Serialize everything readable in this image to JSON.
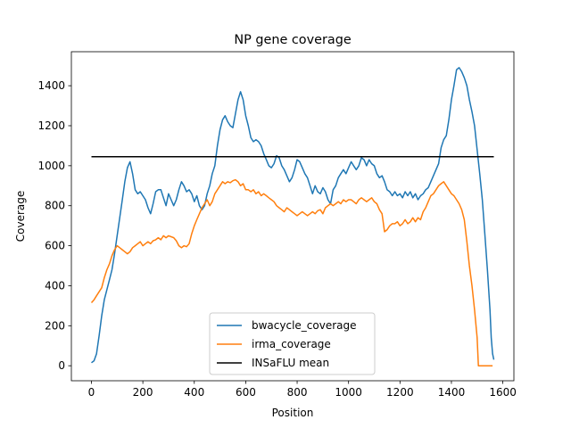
{
  "chart_data": {
    "type": "line",
    "title": "NP gene coverage",
    "xlabel": "Position",
    "ylabel": "Coverage",
    "xlim": [
      -78,
      1643
    ],
    "ylim": [
      -75,
      1570
    ],
    "xticks": [
      0,
      200,
      400,
      600,
      800,
      1000,
      1200,
      1400,
      1600
    ],
    "yticks": [
      0,
      200,
      400,
      600,
      800,
      1000,
      1200,
      1400
    ],
    "grid": false,
    "legend_position": "lower center",
    "series": [
      {
        "name": "bwacycle_coverage",
        "color": "#1f77b4",
        "points": [
          [
            0,
            15
          ],
          [
            10,
            25
          ],
          [
            20,
            60
          ],
          [
            30,
            150
          ],
          [
            40,
            250
          ],
          [
            50,
            330
          ],
          [
            60,
            380
          ],
          [
            70,
            430
          ],
          [
            80,
            480
          ],
          [
            90,
            560
          ],
          [
            100,
            650
          ],
          [
            110,
            740
          ],
          [
            120,
            830
          ],
          [
            130,
            920
          ],
          [
            140,
            990
          ],
          [
            150,
            1020
          ],
          [
            160,
            960
          ],
          [
            170,
            880
          ],
          [
            180,
            860
          ],
          [
            190,
            870
          ],
          [
            200,
            850
          ],
          [
            210,
            830
          ],
          [
            220,
            790
          ],
          [
            230,
            760
          ],
          [
            240,
            810
          ],
          [
            250,
            870
          ],
          [
            260,
            880
          ],
          [
            270,
            880
          ],
          [
            280,
            840
          ],
          [
            290,
            800
          ],
          [
            300,
            860
          ],
          [
            310,
            830
          ],
          [
            320,
            800
          ],
          [
            330,
            830
          ],
          [
            340,
            880
          ],
          [
            350,
            920
          ],
          [
            360,
            900
          ],
          [
            370,
            870
          ],
          [
            380,
            880
          ],
          [
            390,
            860
          ],
          [
            400,
            820
          ],
          [
            410,
            850
          ],
          [
            420,
            800
          ],
          [
            430,
            780
          ],
          [
            440,
            800
          ],
          [
            450,
            860
          ],
          [
            460,
            900
          ],
          [
            470,
            960
          ],
          [
            480,
            1000
          ],
          [
            490,
            1100
          ],
          [
            500,
            1180
          ],
          [
            510,
            1230
          ],
          [
            520,
            1250
          ],
          [
            530,
            1220
          ],
          [
            540,
            1200
          ],
          [
            550,
            1190
          ],
          [
            560,
            1260
          ],
          [
            570,
            1330
          ],
          [
            580,
            1370
          ],
          [
            590,
            1330
          ],
          [
            600,
            1250
          ],
          [
            610,
            1200
          ],
          [
            620,
            1140
          ],
          [
            630,
            1120
          ],
          [
            640,
            1130
          ],
          [
            650,
            1120
          ],
          [
            660,
            1100
          ],
          [
            670,
            1060
          ],
          [
            680,
            1030
          ],
          [
            690,
            1000
          ],
          [
            700,
            990
          ],
          [
            710,
            1010
          ],
          [
            720,
            1050
          ],
          [
            730,
            1040
          ],
          [
            740,
            1000
          ],
          [
            750,
            980
          ],
          [
            760,
            950
          ],
          [
            770,
            920
          ],
          [
            780,
            940
          ],
          [
            790,
            980
          ],
          [
            800,
            1030
          ],
          [
            810,
            1020
          ],
          [
            820,
            990
          ],
          [
            830,
            960
          ],
          [
            840,
            940
          ],
          [
            850,
            900
          ],
          [
            860,
            860
          ],
          [
            870,
            900
          ],
          [
            880,
            870
          ],
          [
            890,
            860
          ],
          [
            900,
            890
          ],
          [
            910,
            870
          ],
          [
            920,
            830
          ],
          [
            930,
            810
          ],
          [
            940,
            880
          ],
          [
            950,
            900
          ],
          [
            960,
            940
          ],
          [
            970,
            960
          ],
          [
            980,
            980
          ],
          [
            990,
            960
          ],
          [
            1000,
            990
          ],
          [
            1010,
            1020
          ],
          [
            1020,
            1000
          ],
          [
            1030,
            980
          ],
          [
            1040,
            1000
          ],
          [
            1050,
            1040
          ],
          [
            1060,
            1030
          ],
          [
            1070,
            1000
          ],
          [
            1080,
            1030
          ],
          [
            1090,
            1010
          ],
          [
            1100,
            1000
          ],
          [
            1110,
            960
          ],
          [
            1120,
            940
          ],
          [
            1130,
            950
          ],
          [
            1140,
            920
          ],
          [
            1150,
            880
          ],
          [
            1160,
            870
          ],
          [
            1170,
            850
          ],
          [
            1180,
            870
          ],
          [
            1190,
            850
          ],
          [
            1200,
            860
          ],
          [
            1210,
            840
          ],
          [
            1220,
            870
          ],
          [
            1230,
            850
          ],
          [
            1240,
            870
          ],
          [
            1250,
            840
          ],
          [
            1260,
            860
          ],
          [
            1270,
            830
          ],
          [
            1280,
            850
          ],
          [
            1290,
            860
          ],
          [
            1300,
            880
          ],
          [
            1310,
            890
          ],
          [
            1320,
            920
          ],
          [
            1330,
            950
          ],
          [
            1340,
            980
          ],
          [
            1350,
            1010
          ],
          [
            1360,
            1090
          ],
          [
            1370,
            1130
          ],
          [
            1380,
            1150
          ],
          [
            1390,
            1230
          ],
          [
            1400,
            1330
          ],
          [
            1410,
            1400
          ],
          [
            1420,
            1480
          ],
          [
            1430,
            1490
          ],
          [
            1440,
            1470
          ],
          [
            1450,
            1440
          ],
          [
            1460,
            1400
          ],
          [
            1470,
            1330
          ],
          [
            1480,
            1270
          ],
          [
            1490,
            1200
          ],
          [
            1500,
            1080
          ],
          [
            1510,
            960
          ],
          [
            1520,
            830
          ],
          [
            1530,
            660
          ],
          [
            1540,
            480
          ],
          [
            1550,
            280
          ],
          [
            1555,
            140
          ],
          [
            1560,
            60
          ],
          [
            1565,
            30
          ]
        ]
      },
      {
        "name": "irma_coverage",
        "color": "#ff7f0e",
        "points": [
          [
            0,
            315
          ],
          [
            10,
            330
          ],
          [
            20,
            350
          ],
          [
            30,
            370
          ],
          [
            40,
            390
          ],
          [
            50,
            440
          ],
          [
            60,
            480
          ],
          [
            70,
            510
          ],
          [
            80,
            550
          ],
          [
            90,
            580
          ],
          [
            100,
            600
          ],
          [
            110,
            590
          ],
          [
            120,
            580
          ],
          [
            130,
            570
          ],
          [
            140,
            560
          ],
          [
            150,
            570
          ],
          [
            160,
            590
          ],
          [
            170,
            600
          ],
          [
            180,
            610
          ],
          [
            190,
            620
          ],
          [
            200,
            600
          ],
          [
            210,
            610
          ],
          [
            220,
            620
          ],
          [
            230,
            610
          ],
          [
            240,
            625
          ],
          [
            250,
            630
          ],
          [
            260,
            640
          ],
          [
            270,
            630
          ],
          [
            280,
            650
          ],
          [
            290,
            640
          ],
          [
            300,
            650
          ],
          [
            310,
            645
          ],
          [
            320,
            640
          ],
          [
            330,
            625
          ],
          [
            340,
            600
          ],
          [
            350,
            590
          ],
          [
            360,
            600
          ],
          [
            370,
            595
          ],
          [
            380,
            610
          ],
          [
            390,
            660
          ],
          [
            400,
            700
          ],
          [
            410,
            730
          ],
          [
            420,
            760
          ],
          [
            430,
            790
          ],
          [
            440,
            810
          ],
          [
            450,
            830
          ],
          [
            460,
            800
          ],
          [
            470,
            820
          ],
          [
            480,
            860
          ],
          [
            490,
            880
          ],
          [
            500,
            900
          ],
          [
            510,
            920
          ],
          [
            520,
            910
          ],
          [
            530,
            920
          ],
          [
            540,
            915
          ],
          [
            550,
            925
          ],
          [
            560,
            930
          ],
          [
            570,
            920
          ],
          [
            580,
            900
          ],
          [
            590,
            910
          ],
          [
            600,
            880
          ],
          [
            610,
            880
          ],
          [
            620,
            870
          ],
          [
            630,
            880
          ],
          [
            640,
            860
          ],
          [
            650,
            870
          ],
          [
            660,
            850
          ],
          [
            670,
            860
          ],
          [
            680,
            850
          ],
          [
            690,
            840
          ],
          [
            700,
            830
          ],
          [
            710,
            820
          ],
          [
            720,
            800
          ],
          [
            730,
            790
          ],
          [
            740,
            780
          ],
          [
            750,
            770
          ],
          [
            760,
            790
          ],
          [
            770,
            780
          ],
          [
            780,
            770
          ],
          [
            790,
            760
          ],
          [
            800,
            750
          ],
          [
            810,
            760
          ],
          [
            820,
            770
          ],
          [
            830,
            760
          ],
          [
            840,
            750
          ],
          [
            850,
            760
          ],
          [
            860,
            770
          ],
          [
            870,
            760
          ],
          [
            880,
            775
          ],
          [
            890,
            780
          ],
          [
            900,
            760
          ],
          [
            910,
            790
          ],
          [
            920,
            800
          ],
          [
            930,
            810
          ],
          [
            940,
            800
          ],
          [
            950,
            810
          ],
          [
            960,
            820
          ],
          [
            970,
            810
          ],
          [
            980,
            830
          ],
          [
            990,
            820
          ],
          [
            1000,
            830
          ],
          [
            1010,
            830
          ],
          [
            1020,
            820
          ],
          [
            1030,
            810
          ],
          [
            1040,
            830
          ],
          [
            1050,
            840
          ],
          [
            1060,
            830
          ],
          [
            1070,
            820
          ],
          [
            1080,
            830
          ],
          [
            1090,
            840
          ],
          [
            1100,
            820
          ],
          [
            1110,
            810
          ],
          [
            1120,
            780
          ],
          [
            1130,
            760
          ],
          [
            1140,
            670
          ],
          [
            1150,
            680
          ],
          [
            1160,
            700
          ],
          [
            1170,
            710
          ],
          [
            1180,
            710
          ],
          [
            1190,
            720
          ],
          [
            1200,
            700
          ],
          [
            1210,
            710
          ],
          [
            1220,
            730
          ],
          [
            1230,
            710
          ],
          [
            1240,
            720
          ],
          [
            1250,
            740
          ],
          [
            1260,
            720
          ],
          [
            1270,
            740
          ],
          [
            1280,
            730
          ],
          [
            1290,
            770
          ],
          [
            1300,
            790
          ],
          [
            1310,
            820
          ],
          [
            1320,
            850
          ],
          [
            1330,
            860
          ],
          [
            1340,
            880
          ],
          [
            1350,
            900
          ],
          [
            1360,
            910
          ],
          [
            1370,
            920
          ],
          [
            1380,
            900
          ],
          [
            1390,
            880
          ],
          [
            1400,
            860
          ],
          [
            1410,
            850
          ],
          [
            1420,
            830
          ],
          [
            1430,
            810
          ],
          [
            1440,
            780
          ],
          [
            1450,
            730
          ],
          [
            1460,
            620
          ],
          [
            1470,
            500
          ],
          [
            1480,
            400
          ],
          [
            1490,
            280
          ],
          [
            1500,
            140
          ],
          [
            1505,
            0
          ],
          [
            1560,
            0
          ]
        ]
      },
      {
        "name": "INSaFLU mean",
        "color": "#000000",
        "points": [
          [
            0,
            1045
          ],
          [
            1565,
            1045
          ]
        ]
      }
    ]
  }
}
